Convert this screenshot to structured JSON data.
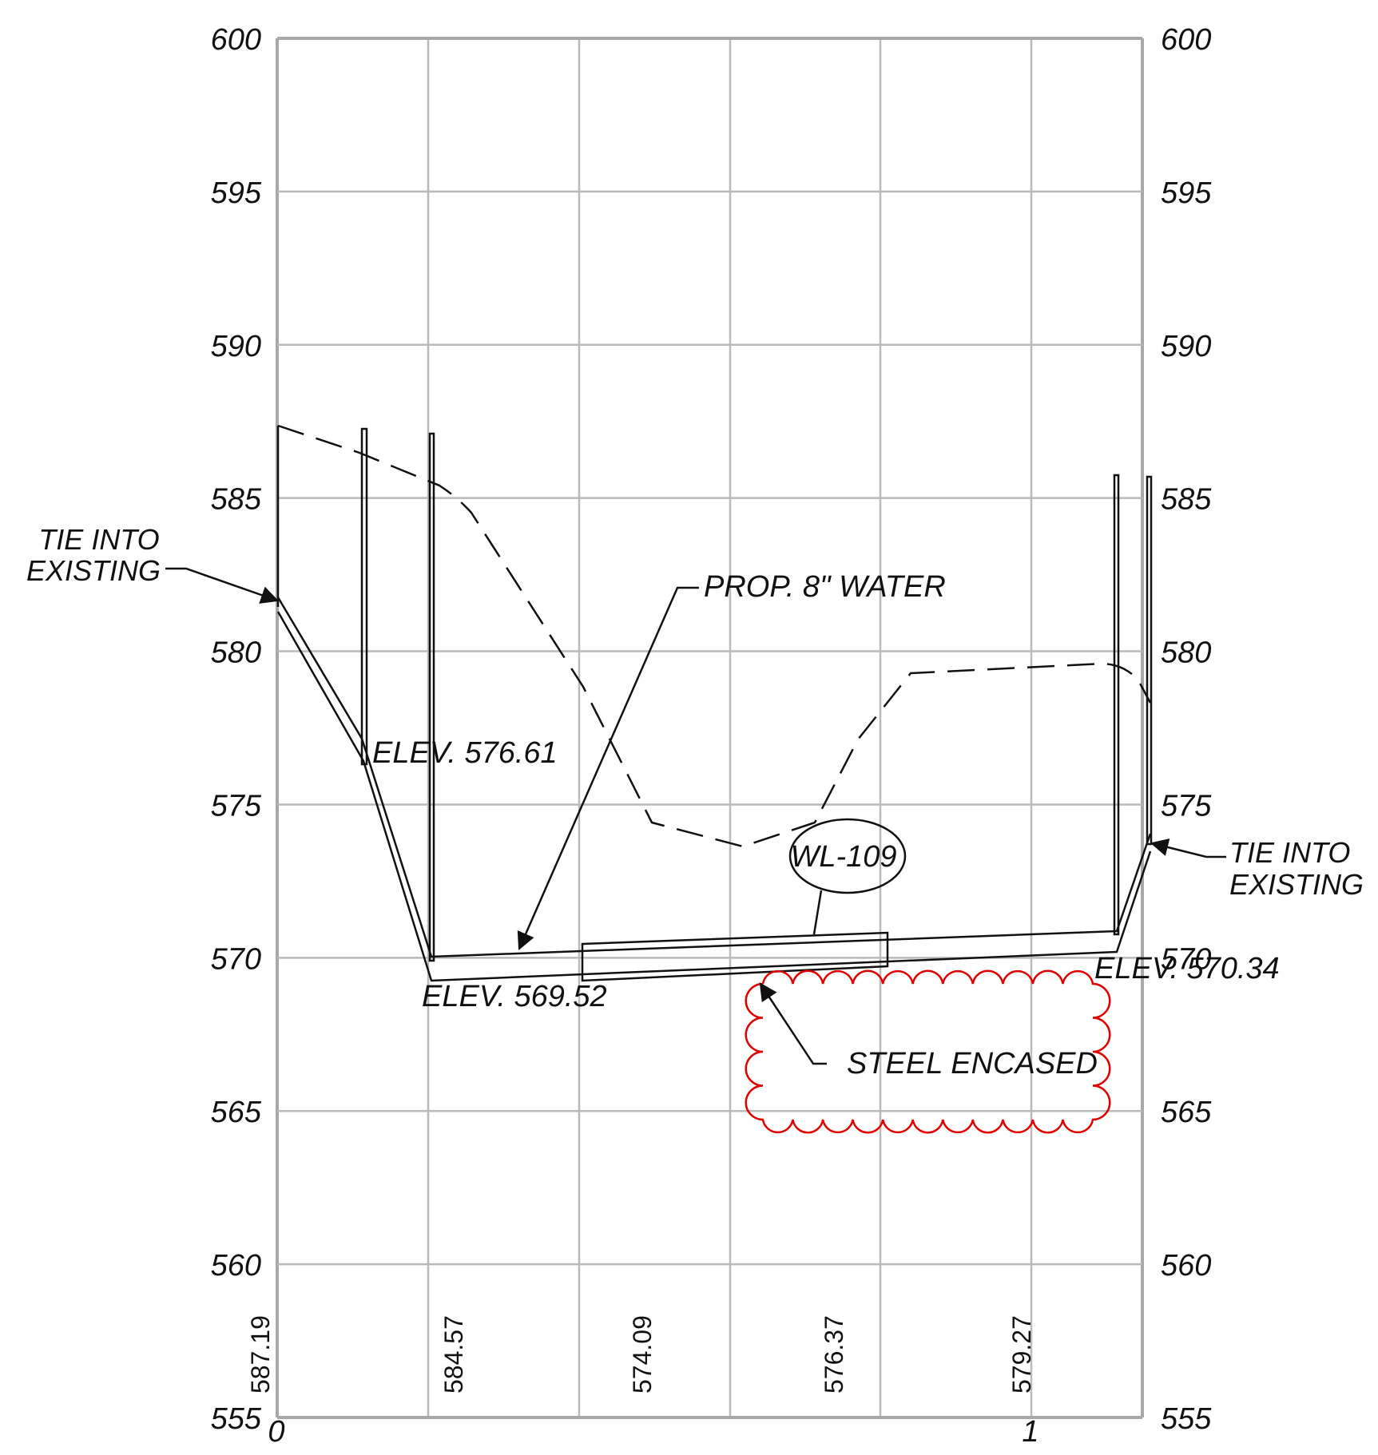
{
  "profile": {
    "elevation_axis": {
      "min": 555,
      "max": 600,
      "step": 5,
      "ticks": [
        "600",
        "595",
        "590",
        "585",
        "580",
        "575",
        "570",
        "565",
        "560",
        "555"
      ]
    },
    "station_axis": {
      "start_label": "0",
      "end_label": "1"
    },
    "existing_grade_values": [
      "587.19",
      "584.57",
      "574.09",
      "576.37",
      "579.27"
    ]
  },
  "labels": {
    "tie_left_line1": "TIE INTO",
    "tie_left_line2": "EXISTING",
    "tie_right_line1": "TIE INTO",
    "tie_right_line2": "EXISTING",
    "elev_576": "ELEV. 576.61",
    "elev_569": "ELEV. 569.52",
    "elev_570": "ELEV. 570.34",
    "prop_water": "PROP. 8\" WATER",
    "wl_tag": "WL-109",
    "steel_encased": "STEEL ENCASED"
  },
  "colors": {
    "ink": "#111111",
    "grid": "#b9b9b9",
    "revision_cloud": "#e00000"
  }
}
